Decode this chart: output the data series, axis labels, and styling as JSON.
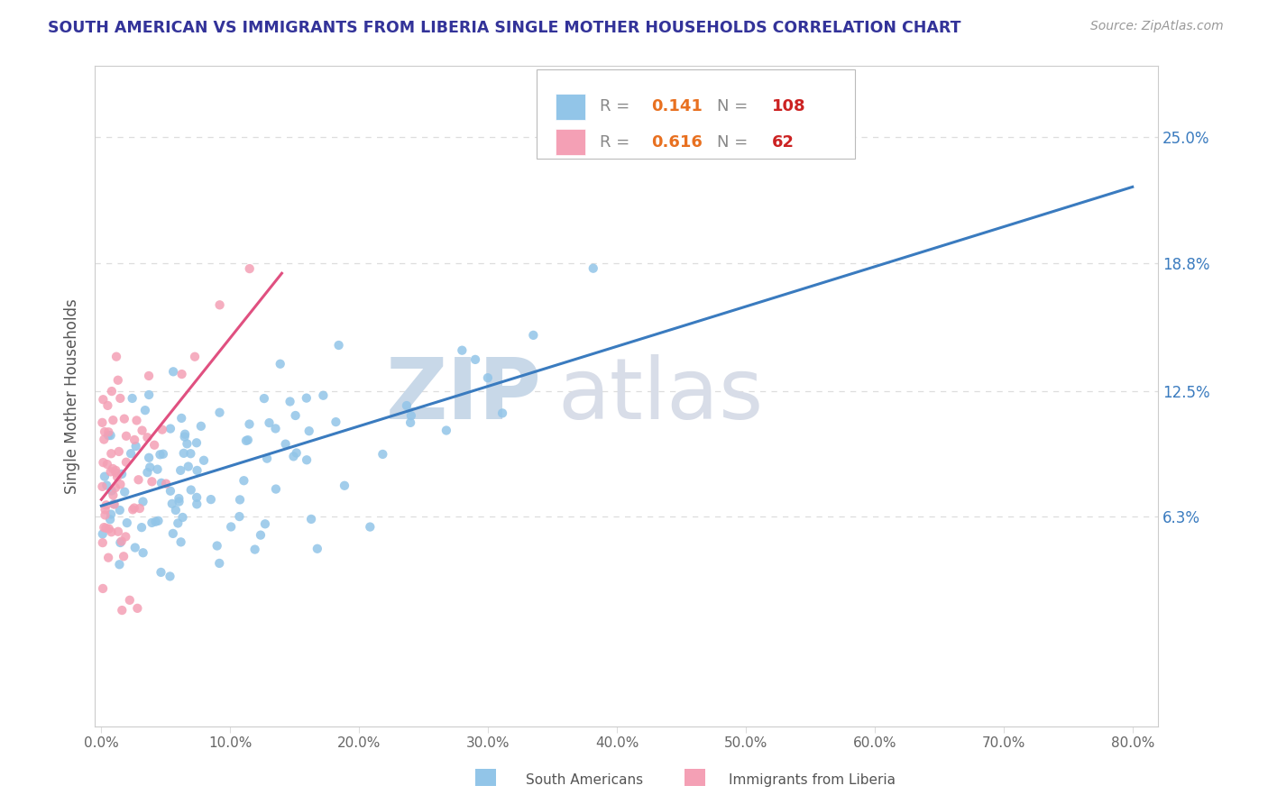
{
  "title": "SOUTH AMERICAN VS IMMIGRANTS FROM LIBERIA SINGLE MOTHER HOUSEHOLDS CORRELATION CHART",
  "source": "Source: ZipAtlas.com",
  "ylabel": "Single Mother Households",
  "xlim": [
    -0.005,
    0.82
  ],
  "ylim": [
    -0.04,
    0.285
  ],
  "yticks": [
    0.063,
    0.125,
    0.188,
    0.25
  ],
  "ytick_labels": [
    "6.3%",
    "12.5%",
    "18.8%",
    "25.0%"
  ],
  "xticks": [
    0.0,
    0.1,
    0.2,
    0.3,
    0.4,
    0.5,
    0.6,
    0.7,
    0.8
  ],
  "xtick_labels": [
    "0.0%",
    "10.0%",
    "20.0%",
    "30.0%",
    "40.0%",
    "50.0%",
    "60.0%",
    "70.0%",
    "80.0%"
  ],
  "blue_color": "#92C5E8",
  "pink_color": "#F4A0B5",
  "blue_line_color": "#3a7bbf",
  "pink_line_color": "#e05080",
  "R_blue": 0.141,
  "N_blue": 108,
  "R_pink": 0.616,
  "N_pink": 62,
  "legend_label_blue": "South Americans",
  "legend_label_pink": "Immigrants from Liberia",
  "title_color": "#333399",
  "source_color": "#999999",
  "tick_color": "#666666",
  "ylabel_color": "#555555",
  "right_tick_color": "#3a7bbf",
  "grid_color": "#dddddd",
  "watermark_zip_color": "#c8d8e8",
  "watermark_atlas_color": "#d8dde8"
}
